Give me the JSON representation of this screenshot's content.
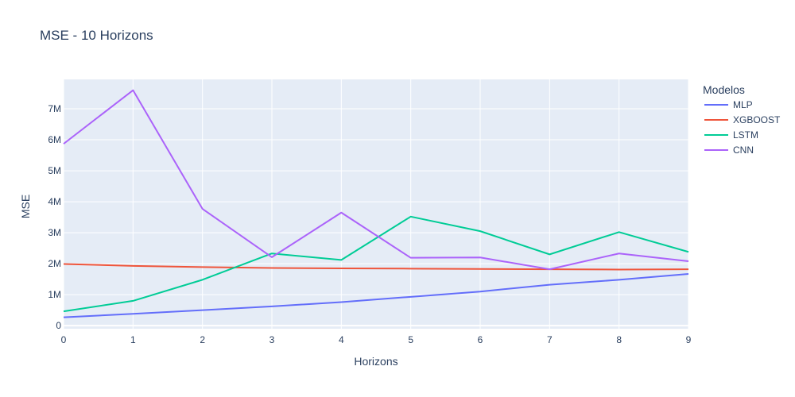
{
  "chart_data": {
    "type": "line",
    "title": "MSE - 10 Horizons",
    "xlabel": "Horizons",
    "ylabel": "MSE",
    "x": [
      0,
      1,
      2,
      3,
      4,
      5,
      6,
      7,
      8,
      9
    ],
    "xlim": [
      0,
      9
    ],
    "ylim": [
      -100000,
      7950000
    ],
    "x_ticks": [
      0,
      1,
      2,
      3,
      4,
      5,
      6,
      7,
      8,
      9
    ],
    "y_ticks": [
      {
        "value": 0,
        "label": "0"
      },
      {
        "value": 1000000,
        "label": "1M"
      },
      {
        "value": 2000000,
        "label": "2M"
      },
      {
        "value": 3000000,
        "label": "3M"
      },
      {
        "value": 4000000,
        "label": "4M"
      },
      {
        "value": 5000000,
        "label": "5M"
      },
      {
        "value": 6000000,
        "label": "6M"
      },
      {
        "value": 7000000,
        "label": "7M"
      }
    ],
    "grid": true,
    "legend": {
      "title": "Modelos",
      "placement": "top-right, outside plot"
    },
    "colors": {
      "plot_bg": "#e5ecf6",
      "grid": "#ffffff",
      "text": "#2a3f5f"
    },
    "series": [
      {
        "name": "MLP",
        "color": "#636efa",
        "values": [
          270000,
          380000,
          500000,
          620000,
          760000,
          930000,
          1100000,
          1320000,
          1480000,
          1670000
        ]
      },
      {
        "name": "XGBOOST",
        "color": "#ef553b",
        "values": [
          1990000,
          1930000,
          1890000,
          1860000,
          1850000,
          1840000,
          1830000,
          1820000,
          1810000,
          1820000
        ]
      },
      {
        "name": "LSTM",
        "color": "#00cc96",
        "values": [
          460000,
          800000,
          1480000,
          2330000,
          2120000,
          3520000,
          3050000,
          2300000,
          3020000,
          2380000
        ]
      },
      {
        "name": "CNN",
        "color": "#ab63fa",
        "values": [
          5870000,
          7600000,
          3770000,
          2210000,
          3650000,
          2190000,
          2200000,
          1820000,
          2330000,
          2080000
        ]
      }
    ]
  }
}
